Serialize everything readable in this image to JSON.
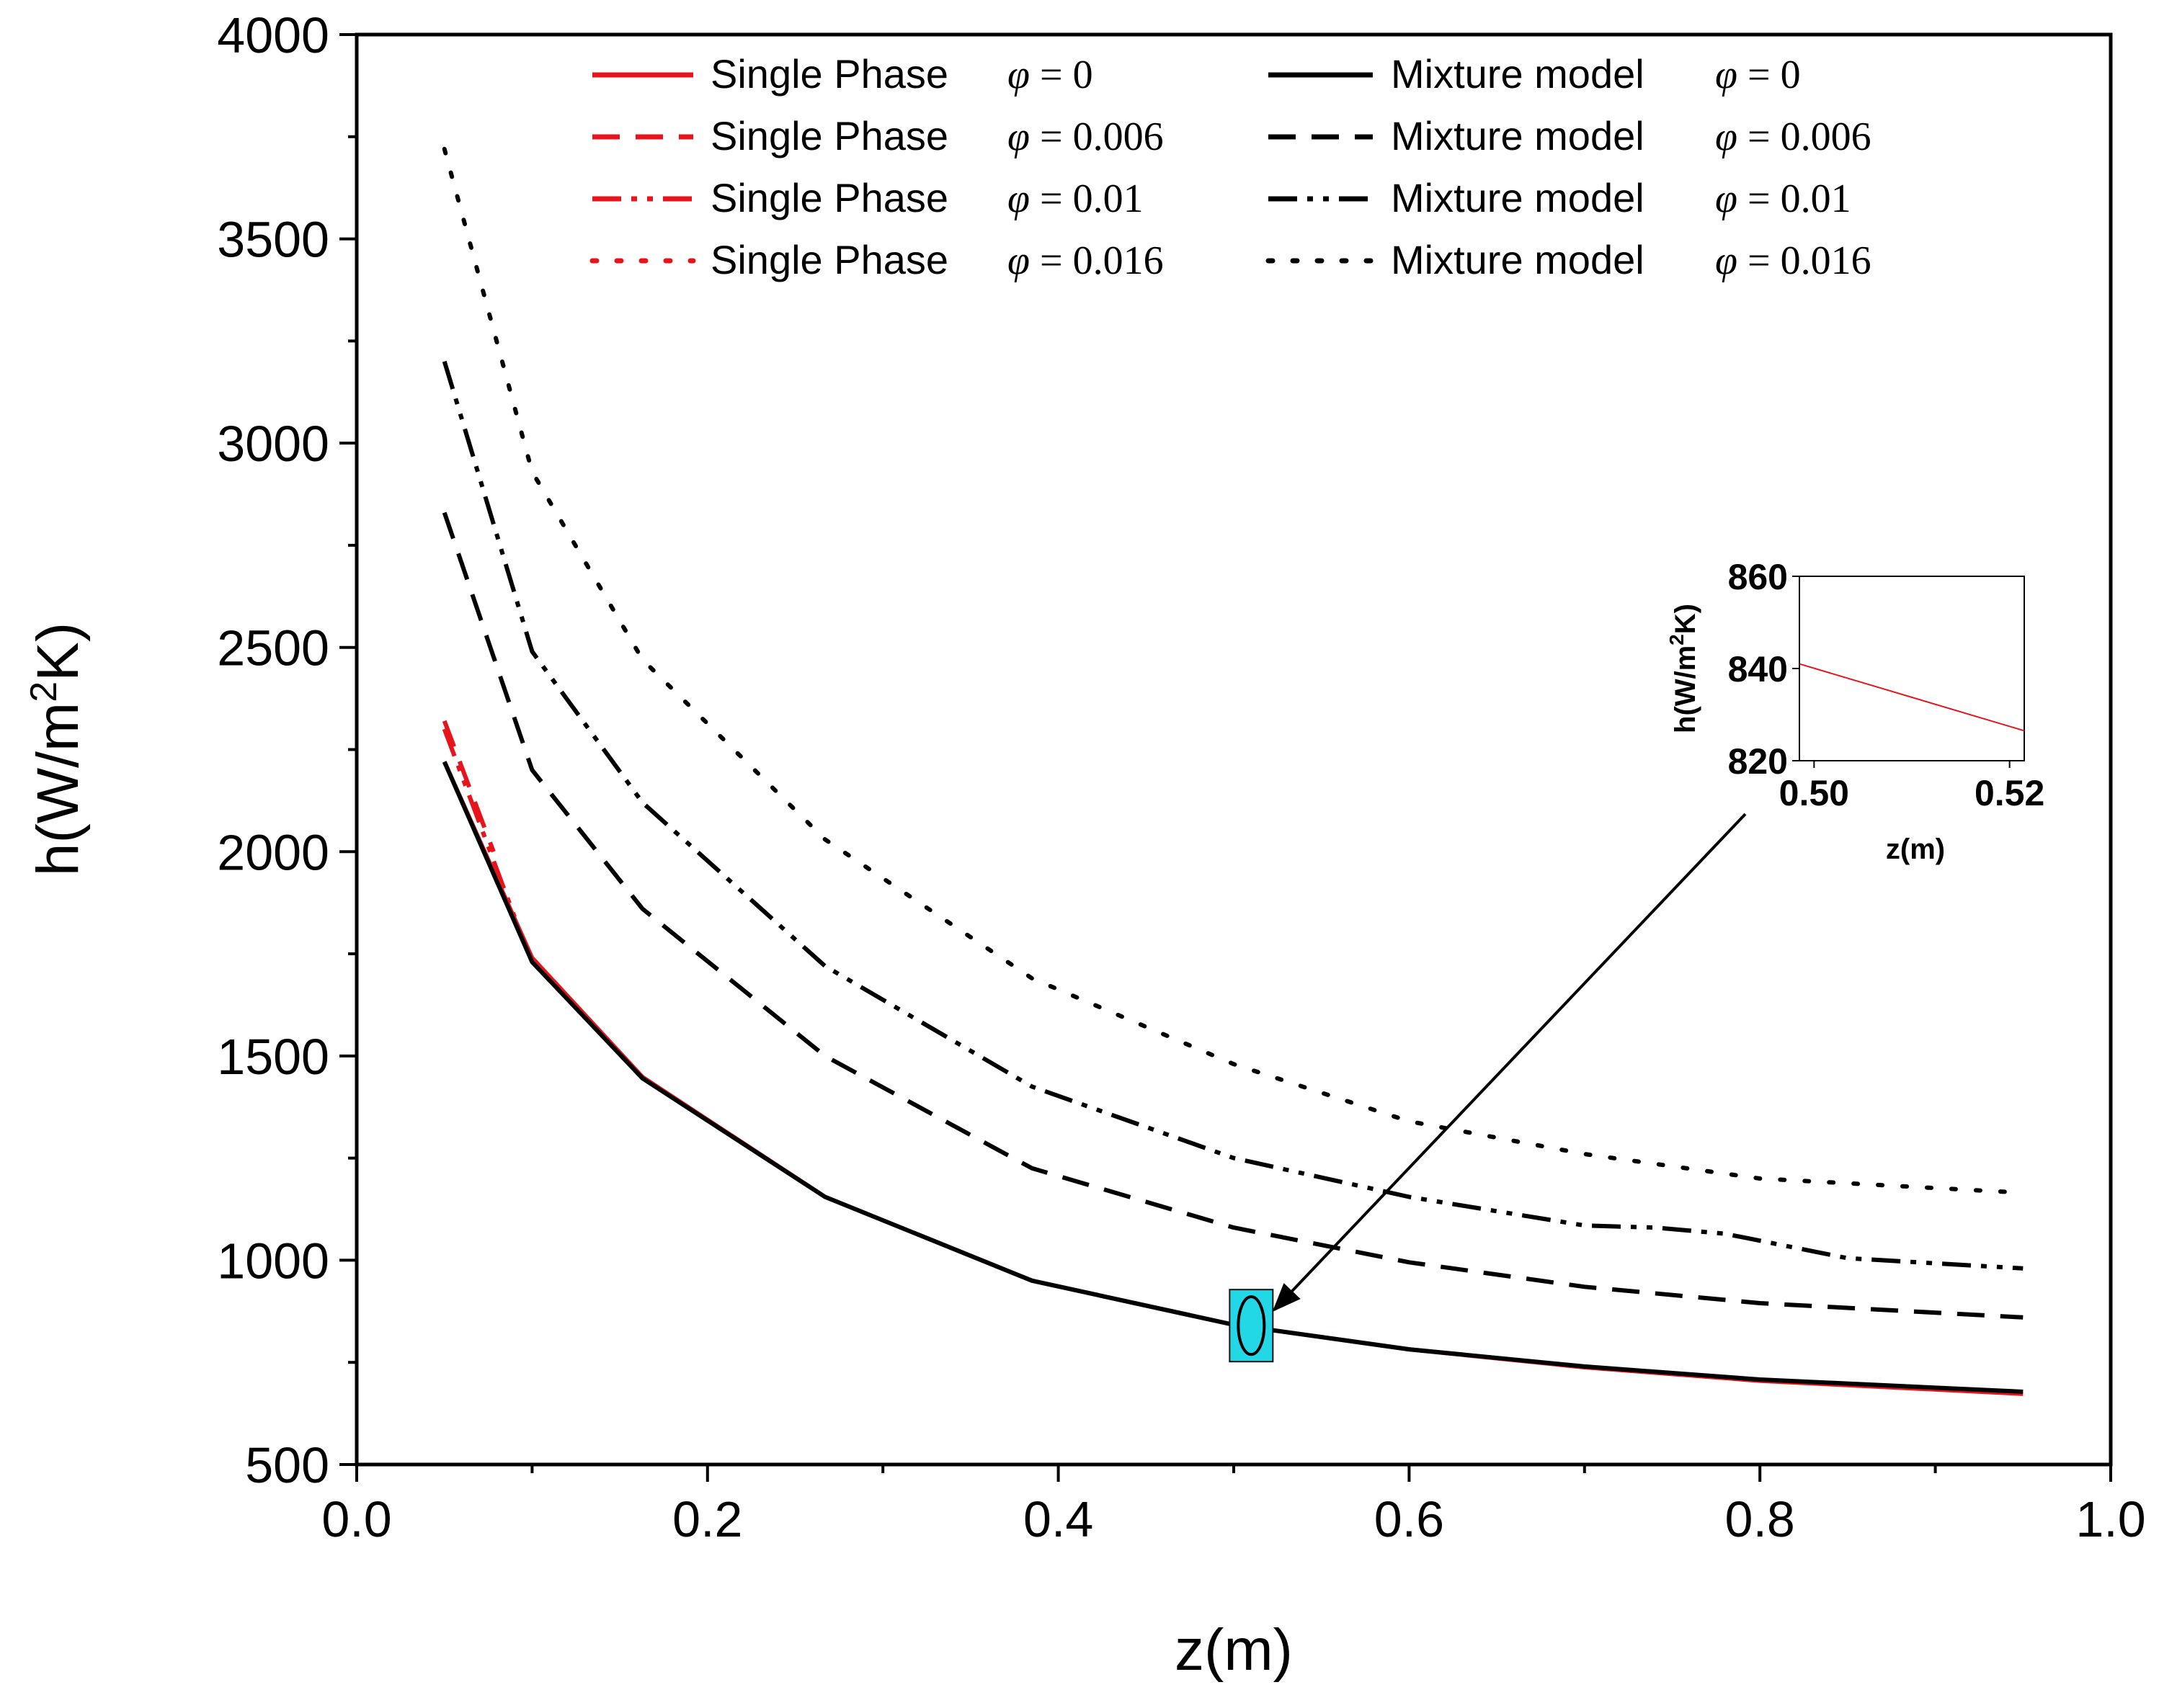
{
  "chart_data": {
    "type": "line",
    "xlabel": "z(m)",
    "ylabel": "h(W/m²K)",
    "ylabel_parts": {
      "pre": "h(W/m",
      "sup": "2",
      "post": "K)"
    },
    "xlim": [
      0.0,
      1.0
    ],
    "ylim": [
      500,
      4000
    ],
    "xticks": [
      "0.0",
      "0.2",
      "0.4",
      "0.6",
      "0.8",
      "1.0"
    ],
    "yticks": [
      "500",
      "1000",
      "1500",
      "2000",
      "2500",
      "3000",
      "3500",
      "4000"
    ],
    "series": [
      {
        "name": "Single Phase",
        "phi_value": "0",
        "color": "#e8141c",
        "dash": "solid",
        "x": [
          0.05,
          0.1,
          0.163,
          0.267,
          0.385,
          0.5,
          0.6,
          0.7,
          0.8,
          0.95
        ],
        "y": [
          2220,
          1740,
          1448,
          1155,
          950,
          842,
          782,
          738,
          705,
          673
        ]
      },
      {
        "name": "Single Phase",
        "phi_value": "0.006",
        "color": "#e8141c",
        "dash": "dash",
        "x": [
          0.05,
          0.078
        ],
        "y": [
          2320,
          2000
        ]
      },
      {
        "name": "Single Phase",
        "phi_value": "0.01",
        "color": "#e8141c",
        "dash": "dashdotdot",
        "x": [
          0.05,
          0.09
        ],
        "y": [
          2300,
          1840
        ]
      },
      {
        "name": "Single Phase",
        "phi_value": "0.016",
        "color": "#e8141c",
        "dash": "dot",
        "x": [],
        "y": []
      },
      {
        "name": "Mixture model",
        "phi_value": "0",
        "color": "#000000",
        "dash": "solid",
        "x": [
          0.05,
          0.1,
          0.163,
          0.267,
          0.385,
          0.5,
          0.6,
          0.7,
          0.8,
          0.95
        ],
        "y": [
          2220,
          1730,
          1445,
          1155,
          950,
          842,
          782,
          740,
          708,
          678
        ]
      },
      {
        "name": "Mixture model",
        "phi_value": "0.006",
        "color": "#000000",
        "dash": "dash",
        "x": [
          0.05,
          0.1,
          0.163,
          0.267,
          0.385,
          0.5,
          0.6,
          0.7,
          0.8,
          0.95
        ],
        "y": [
          2830,
          2200,
          1860,
          1500,
          1225,
          1080,
          995,
          935,
          895,
          860
        ]
      },
      {
        "name": "Mixture model",
        "phi_value": "0.01",
        "color": "#000000",
        "dash": "dashdotdot",
        "x": [
          0.05,
          0.1,
          0.163,
          0.267,
          0.385,
          0.5,
          0.6,
          0.7,
          0.74,
          0.78,
          0.85,
          0.95
        ],
        "y": [
          3200,
          2490,
          2120,
          1720,
          1425,
          1250,
          1155,
          1085,
          1080,
          1065,
          1005,
          980
        ]
      },
      {
        "name": "Mixture model",
        "phi_value": "0.016",
        "color": "#000000",
        "dash": "dot",
        "x": [
          0.05,
          0.1,
          0.163,
          0.267,
          0.385,
          0.5,
          0.6,
          0.7,
          0.8,
          0.95
        ],
        "y": [
          3720,
          2930,
          2470,
          2030,
          1690,
          1480,
          1340,
          1260,
          1200,
          1165
        ]
      }
    ],
    "legend": {
      "phi_symbol": "φ",
      "left": [
        {
          "label": "Single Phase",
          "phi_value": "0"
        },
        {
          "label": "Single Phase",
          "phi_value": "0.006"
        },
        {
          "label": "Single Phase",
          "phi_value": "0.01"
        },
        {
          "label": "Single Phase",
          "phi_value": "0.016"
        }
      ],
      "right": [
        {
          "label": "Mixture model",
          "phi_value": "0"
        },
        {
          "label": "Mixture model",
          "phi_value": "0.006"
        },
        {
          "label": "Mixture model",
          "phi_value": "0.01"
        },
        {
          "label": "Mixture model",
          "phi_value": "0.016"
        }
      ],
      "placement": "top"
    },
    "highlight": {
      "x": 0.51,
      "y": 840,
      "color": "#22d8e6"
    },
    "inset": {
      "xlabel": "z(m)",
      "ylabel": "h(W/m²K)",
      "ylabel_parts": {
        "pre": "h(W/m",
        "sup": "2",
        "post": "K)"
      },
      "xlim": [
        0.4985,
        0.5215
      ],
      "ylim": [
        820,
        860
      ],
      "xticks": [
        "0.50",
        "0.52"
      ],
      "yticks": [
        "820",
        "840",
        "860"
      ],
      "series": {
        "color": "#e8141c",
        "x": [
          0.4985,
          0.5215
        ],
        "y": [
          841,
          826.5
        ]
      }
    }
  }
}
